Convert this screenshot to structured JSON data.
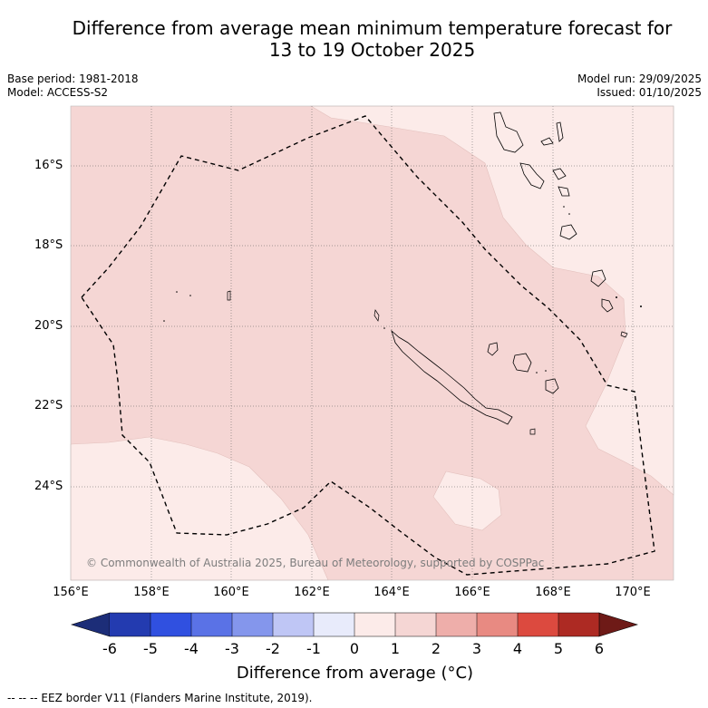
{
  "title_line1": "Difference from average mean minimum temperature forecast for",
  "title_line2": "13 to 19 October 2025",
  "base_period": "Base period: 1981-2018",
  "model": "Model: ACCESS-S2",
  "model_run": "Model run: 29/09/2025",
  "issued": "Issued: 01/10/2025",
  "lat_ticks": [
    "16°S",
    "18°S",
    "20°S",
    "22°S",
    "24°S"
  ],
  "lon_ticks": [
    "156°E",
    "158°E",
    "160°E",
    "162°E",
    "164°E",
    "166°E",
    "168°E",
    "170°E"
  ],
  "copyright": "© Commonwealth of Australia 2025, Bureau of Meteorology, supported by COSPPac",
  "colorbar": {
    "labels": [
      "-6",
      "-5",
      "-4",
      "-3",
      "-2",
      "-1",
      "0",
      "1",
      "2",
      "3",
      "4",
      "5",
      "6"
    ],
    "low_extend_color": "#1c2d78",
    "high_extend_color": "#6e1a17",
    "colors": [
      "#233bb0",
      "#3050e0",
      "#5a72e6",
      "#8496ec",
      "#bfc6f5",
      "#e8ebfb",
      "#fcebe9",
      "#f5d6d4",
      "#eeaeaa",
      "#e88a82",
      "#dc4a3f",
      "#ad2a23"
    ],
    "title": "Difference from average (°C)"
  },
  "legend_colors": {
    "class_0_1": "#fcebe9",
    "class_1_2": "#f5d6d4"
  },
  "footnote": "--  --  -- EEZ border V11 (Flanders Marine Institute, 2019)."
}
